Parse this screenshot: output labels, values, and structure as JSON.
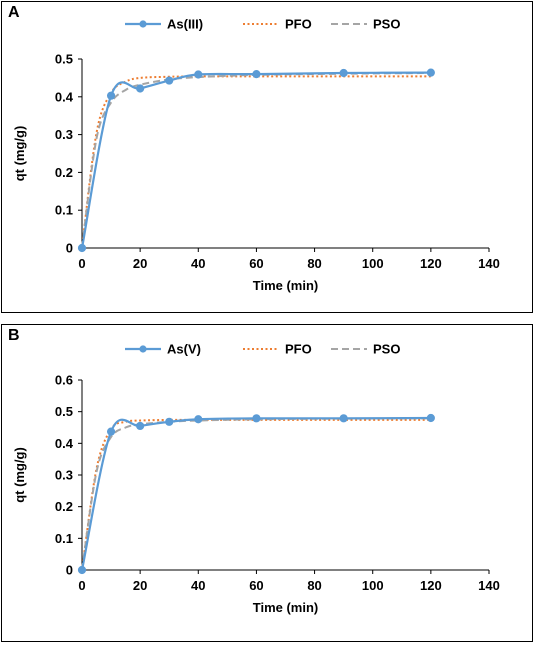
{
  "chart_data": [
    {
      "panel_label": "A",
      "type": "line",
      "xlabel": "Time (min)",
      "ylabel": "qt (mg/g)",
      "xlim": [
        0,
        140
      ],
      "ylim": [
        0,
        0.5
      ],
      "xticks": [
        0,
        20,
        40,
        60,
        80,
        100,
        120,
        140
      ],
      "yticks": [
        0,
        0.1,
        0.2,
        0.3,
        0.4,
        0.5
      ],
      "ytick_labels": [
        "0",
        "0.1",
        "0.2",
        "0.3",
        "0.4",
        "0.5"
      ],
      "legend_position": "top-center",
      "series": [
        {
          "name": "As(III)",
          "style": "solid-markers",
          "color": "#5B9BD5",
          "x": [
            0,
            10,
            20,
            30,
            40,
            60,
            90,
            120
          ],
          "y": [
            0,
            0.403,
            0.422,
            0.443,
            0.459,
            0.46,
            0.463,
            0.464
          ]
        },
        {
          "name": "PFO",
          "style": "dotted",
          "color": "#ED7D31",
          "x": [
            0,
            5,
            10,
            15,
            20,
            30,
            40,
            60,
            90,
            120
          ],
          "y": [
            0,
            0.305,
            0.41,
            0.44,
            0.45,
            0.453,
            0.454,
            0.454,
            0.454,
            0.454
          ]
        },
        {
          "name": "PSO",
          "style": "dashed",
          "color": "#A5A5A5",
          "x": [
            0,
            5,
            10,
            15,
            20,
            30,
            40,
            60,
            90,
            120
          ],
          "y": [
            0,
            0.29,
            0.385,
            0.418,
            0.432,
            0.446,
            0.452,
            0.458,
            0.461,
            0.463
          ]
        }
      ]
    },
    {
      "panel_label": "B",
      "type": "line",
      "xlabel": "Time (min)",
      "ylabel": "qt (mg/g)",
      "xlim": [
        0,
        140
      ],
      "ylim": [
        0,
        0.6
      ],
      "xticks": [
        0,
        20,
        40,
        60,
        80,
        100,
        120,
        140
      ],
      "yticks": [
        0,
        0.1,
        0.2,
        0.3,
        0.4,
        0.5,
        0.6
      ],
      "ytick_labels": [
        "0",
        "0.1",
        "0.2",
        "0.3",
        "0.4",
        "0.5",
        "0.6"
      ],
      "legend_position": "top-center",
      "series": [
        {
          "name": "As(V)",
          "style": "solid-markers",
          "color": "#5B9BD5",
          "x": [
            0,
            10,
            20,
            30,
            40,
            60,
            90,
            120
          ],
          "y": [
            0,
            0.437,
            0.455,
            0.468,
            0.476,
            0.479,
            0.479,
            0.48
          ]
        },
        {
          "name": "PFO",
          "style": "dotted",
          "color": "#ED7D31",
          "x": [
            0,
            5,
            10,
            15,
            20,
            30,
            40,
            60,
            90,
            120
          ],
          "y": [
            0,
            0.32,
            0.445,
            0.468,
            0.472,
            0.474,
            0.474,
            0.474,
            0.474,
            0.474
          ]
        },
        {
          "name": "PSO",
          "style": "dashed",
          "color": "#A5A5A5",
          "x": [
            0,
            5,
            10,
            15,
            20,
            30,
            40,
            60,
            90,
            120
          ],
          "y": [
            0,
            0.31,
            0.42,
            0.45,
            0.46,
            0.468,
            0.472,
            0.476,
            0.478,
            0.479
          ]
        }
      ]
    }
  ]
}
